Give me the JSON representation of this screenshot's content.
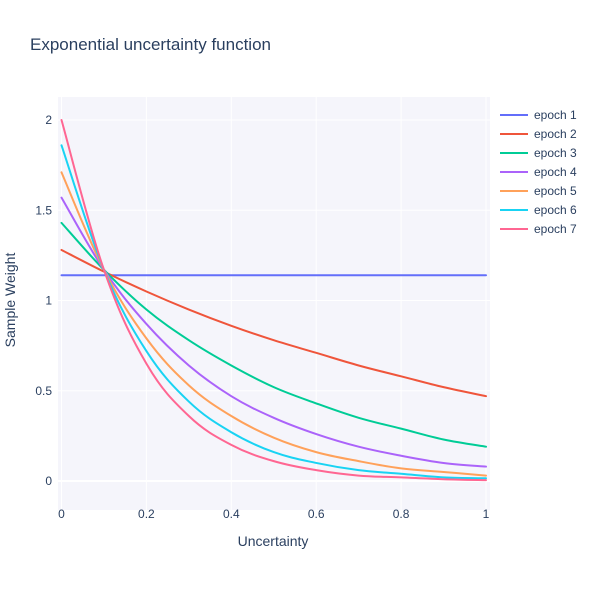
{
  "chart_data": {
    "type": "line",
    "title": "Exponential uncertainty function",
    "xlabel": "Uncertainty",
    "ylabel": "Sample Weight",
    "xlim": [
      0,
      1
    ],
    "ylim": [
      -0.12,
      2.12
    ],
    "x_ticks": [
      0,
      0.2,
      0.4,
      0.6,
      0.8,
      1
    ],
    "x_tick_labels": [
      "0",
      "0.2",
      "0.4",
      "0.6",
      "0.8",
      "1"
    ],
    "y_ticks": [
      0,
      0.5,
      1,
      1.5,
      2
    ],
    "y_tick_labels": [
      "0",
      "0.5",
      "1",
      "1.5",
      "2"
    ],
    "grid": true,
    "legend_position": "right",
    "background_color": "#f5f5fb",
    "grid_color": "#ffffff",
    "x": [
      0,
      0.1,
      0.2,
      0.3,
      0.4,
      0.5,
      0.6,
      0.7,
      0.8,
      0.9,
      1
    ],
    "series": [
      {
        "name": "epoch 1",
        "color": "#636efa",
        "values": [
          1.14,
          1.14,
          1.14,
          1.14,
          1.14,
          1.14,
          1.14,
          1.14,
          1.14,
          1.14,
          1.14
        ]
      },
      {
        "name": "epoch 2",
        "color": "#ef553b",
        "values": [
          1.28,
          1.16,
          1.05,
          0.95,
          0.86,
          0.78,
          0.71,
          0.64,
          0.58,
          0.52,
          0.47
        ]
      },
      {
        "name": "epoch 3",
        "color": "#00cc96",
        "values": [
          1.43,
          1.17,
          0.95,
          0.78,
          0.64,
          0.52,
          0.43,
          0.35,
          0.29,
          0.23,
          0.19
        ]
      },
      {
        "name": "epoch 4",
        "color": "#ab63fa",
        "values": [
          1.57,
          1.17,
          0.87,
          0.64,
          0.47,
          0.35,
          0.26,
          0.19,
          0.14,
          0.1,
          0.08
        ]
      },
      {
        "name": "epoch 5",
        "color": "#ffa15a",
        "values": [
          1.71,
          1.17,
          0.79,
          0.53,
          0.36,
          0.24,
          0.16,
          0.11,
          0.07,
          0.05,
          0.03
        ]
      },
      {
        "name": "epoch 6",
        "color": "#19d3f3",
        "values": [
          1.86,
          1.17,
          0.72,
          0.44,
          0.27,
          0.16,
          0.1,
          0.06,
          0.04,
          0.02,
          0.015
        ]
      },
      {
        "name": "epoch 7",
        "color": "#ff6692",
        "values": [
          2.0,
          1.17,
          0.65,
          0.36,
          0.2,
          0.11,
          0.06,
          0.03,
          0.02,
          0.01,
          0.005
        ]
      }
    ]
  }
}
